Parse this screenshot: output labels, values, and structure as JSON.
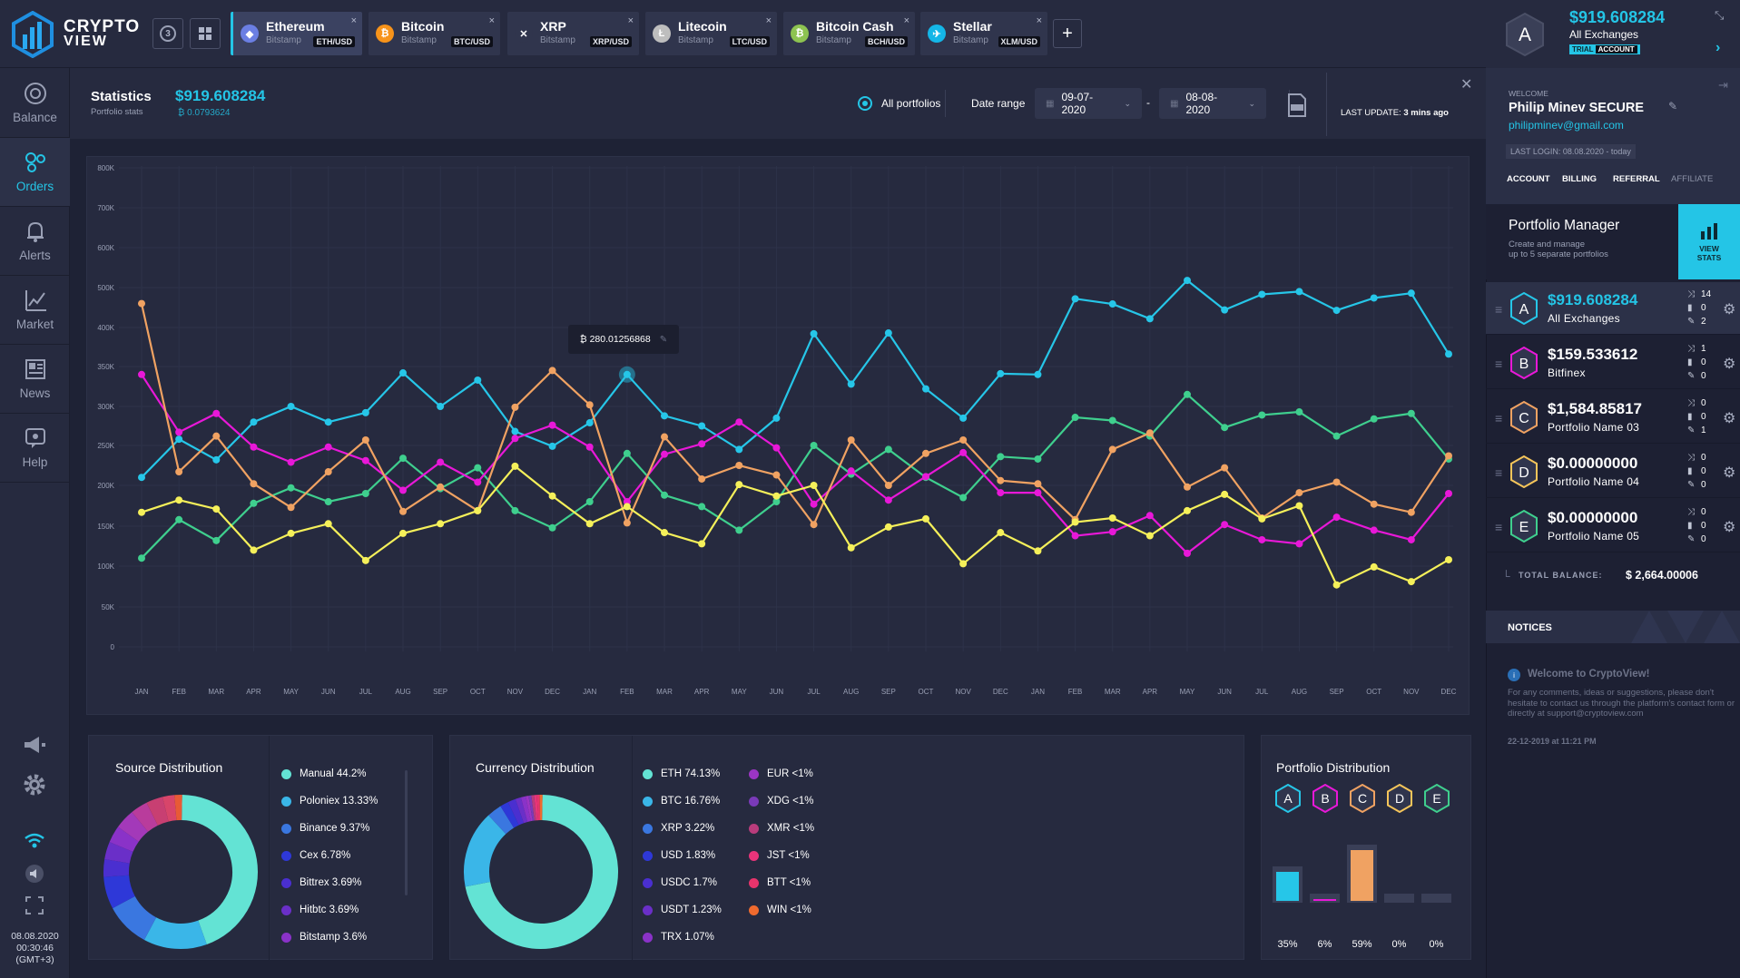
{
  "app": {
    "logo_line1": "CRYPTO",
    "logo_line2": "VIEW"
  },
  "toolbar": {
    "layout_count": "3",
    "add_tab": "+"
  },
  "tabs": [
    {
      "name": "Ethereum",
      "exchange": "Bitstamp",
      "pair": "ETH/USD",
      "color": "#6b7fe3",
      "glyph": "◆",
      "active": true
    },
    {
      "name": "Bitcoin",
      "exchange": "Bitstamp",
      "pair": "BTC/USD",
      "color": "#f7931a",
      "glyph": "₿"
    },
    {
      "name": "XRP",
      "exchange": "Bitstamp",
      "pair": "XRP/USD",
      "color": "#30354d",
      "glyph": "✕"
    },
    {
      "name": "Litecoin",
      "exchange": "Bitstamp",
      "pair": "LTC/USD",
      "color": "#bebebe",
      "glyph": "Ł"
    },
    {
      "name": "Bitcoin Cash",
      "exchange": "Bitstamp",
      "pair": "BCH/USD",
      "color": "#8dc351",
      "glyph": "₿"
    },
    {
      "name": "Stellar",
      "exchange": "Bitstamp",
      "pair": "XLM/USD",
      "color": "#14b6e7",
      "glyph": "✈"
    }
  ],
  "sidebar": {
    "items": [
      {
        "label": "Balance",
        "icon": "balance-icon"
      },
      {
        "label": "Orders",
        "icon": "orders-icon",
        "active": true
      },
      {
        "label": "Alerts",
        "icon": "bell-icon"
      },
      {
        "label": "Market",
        "icon": "market-chart-icon"
      },
      {
        "label": "News",
        "icon": "news-icon"
      },
      {
        "label": "Help",
        "icon": "help-icon"
      }
    ],
    "date": "08.08.2020",
    "time": "00:30:46",
    "timezone": "(GMT+3)"
  },
  "stats": {
    "title": "Statistics",
    "subtitle": "Portfolio stats",
    "total": "$919.608284",
    "btc_total": "₿ 0.0793624",
    "portfolio_filter": "All portfolios",
    "date_range_label": "Date range",
    "date_from": "09-07-2020",
    "date_to": "08-08-2020",
    "date_separator": "-",
    "last_update_label": "LAST UPDATE:",
    "last_update_value": "3 mins ago"
  },
  "chart_data": {
    "type": "line",
    "y_ticks": [
      "0",
      "50K",
      "100K",
      "150K",
      "200K",
      "250K",
      "300K",
      "350K",
      "400K",
      "500K",
      "600K",
      "700K",
      "800K"
    ],
    "categories": [
      "JAN",
      "FEB",
      "MAR",
      "APR",
      "MAY",
      "JUN",
      "JUL",
      "AUG",
      "SEP",
      "OCT",
      "NOV",
      "DEC",
      "JAN",
      "FEB",
      "MAR",
      "APR",
      "MAY",
      "JUN",
      "JUL",
      "AUG",
      "SEP",
      "OCT",
      "NOV",
      "DEC",
      "JAN",
      "FEB",
      "MAR",
      "APR",
      "MAY",
      "JUN",
      "JUL",
      "AUG",
      "SEP",
      "OCT",
      "NOV",
      "DEC"
    ],
    "series": [
      {
        "color": "#26c6e8",
        "values": [
          210,
          258,
          232,
          280,
          300,
          280,
          292,
          342,
          300,
          333,
          268,
          249,
          279,
          340,
          288,
          275,
          245,
          285,
          392,
          328,
          393,
          322,
          285,
          341,
          340,
          472,
          459,
          422,
          518,
          444,
          483,
          490,
          443,
          474,
          486,
          366
        ]
      },
      {
        "color": "#3fcf8e",
        "values": [
          110,
          158,
          132,
          178,
          197,
          180,
          190,
          234,
          196,
          222,
          169,
          148,
          180,
          240,
          188,
          174,
          145,
          180,
          250,
          214,
          245,
          210,
          185,
          236,
          233,
          286,
          282,
          262,
          315,
          273,
          289,
          293,
          262,
          284,
          291,
          233
        ]
      },
      {
        "color": "#e818d8",
        "values": [
          340,
          267,
          291,
          248,
          229,
          248,
          231,
          194,
          229,
          204,
          259,
          276,
          248,
          180,
          239,
          252,
          280,
          247,
          177,
          218,
          182,
          211,
          241,
          191,
          191,
          138,
          143,
          163,
          116,
          152,
          133,
          128,
          161,
          145,
          133,
          190
        ]
      },
      {
        "color": "#f0a262",
        "values": [
          460,
          217,
          262,
          202,
          173,
          217,
          257,
          168,
          198,
          169,
          299,
          345,
          302,
          154,
          261,
          208,
          225,
          213,
          152,
          257,
          200,
          240,
          257,
          206,
          202,
          158,
          245,
          266,
          198,
          222,
          160,
          191,
          204,
          177,
          167,
          237
        ]
      },
      {
        "color": "#f5f05a",
        "values": [
          167,
          182,
          171,
          120,
          141,
          153,
          107,
          141,
          153,
          169,
          224,
          187,
          153,
          174,
          142,
          128,
          201,
          187,
          200,
          123,
          149,
          159,
          103,
          142,
          119,
          155,
          160,
          138,
          169,
          189,
          159,
          175,
          77,
          99,
          81,
          108
        ]
      }
    ],
    "tooltip": "₿ 280.01256868"
  },
  "source_distribution": {
    "title": "Source Distribution",
    "items": [
      {
        "label": "Manual 44.2%",
        "value": 44.2,
        "color": "#63e3d4"
      },
      {
        "label": "Poloniex 13.33%",
        "value": 13.33,
        "color": "#3ab6e8"
      },
      {
        "label": "Binance 9.37%",
        "value": 9.37,
        "color": "#3a77e0"
      },
      {
        "label": "Cex 6.78%",
        "value": 6.78,
        "color": "#2e38d8"
      },
      {
        "label": "Bittrex 3.69%",
        "value": 3.69,
        "color": "#4a2fd0"
      },
      {
        "label": "Hitbtc 3.69%",
        "value": 3.69,
        "color": "#6a2fc8"
      },
      {
        "label": "Bitstamp 3.6%",
        "value": 3.6,
        "color": "#8a32c8"
      }
    ],
    "extra_segments": [
      {
        "value": 4.2,
        "color": "#a339b9"
      },
      {
        "value": 3.6,
        "color": "#b93c9c"
      },
      {
        "value": 3.5,
        "color": "#c83f72"
      },
      {
        "value": 2.5,
        "color": "#d8456a"
      },
      {
        "value": 1.6,
        "color": "#e85a36"
      }
    ]
  },
  "currency_distribution": {
    "title": "Currency Distribution",
    "items_left": [
      {
        "label": "ETH 74.13%",
        "value": 74.13,
        "color": "#63e3d4"
      },
      {
        "label": "BTC 16.76%",
        "value": 16.76,
        "color": "#3ab6e8"
      },
      {
        "label": "XRP 3.22%",
        "value": 3.22,
        "color": "#3a77e0"
      },
      {
        "label": "USD 1.83%",
        "value": 1.83,
        "color": "#2e38d8"
      },
      {
        "label": "USDC 1.7%",
        "value": 1.7,
        "color": "#4a2fd0"
      },
      {
        "label": "USDT 1.23%",
        "value": 1.23,
        "color": "#6a2fc8"
      },
      {
        "label": "TRX 1.07%",
        "value": 1.07,
        "color": "#8a32c8"
      }
    ],
    "items_right": [
      {
        "label": "EUR <1%",
        "color": "#9c35c4"
      },
      {
        "label": "XDG <1%",
        "color": "#7a3ab8"
      },
      {
        "label": "XMR <1%",
        "color": "#b93c7c"
      },
      {
        "label": "JST <1%",
        "color": "#e8347a"
      },
      {
        "label": "BTT <1%",
        "color": "#e8346c"
      },
      {
        "label": "WIN <1%",
        "color": "#ef6a2e"
      }
    ]
  },
  "portfolio_distribution": {
    "title": "Portfolio Distribution",
    "letters": [
      {
        "letter": "A",
        "color": "#26c6e8"
      },
      {
        "letter": "B",
        "color": "#e818d8"
      },
      {
        "letter": "C",
        "color": "#f0a262"
      },
      {
        "letter": "D",
        "color": "#f5c55a"
      },
      {
        "letter": "E",
        "color": "#3fcf8e"
      }
    ],
    "bars": [
      {
        "label": "35%",
        "value": 35,
        "color": "#26c6e8"
      },
      {
        "label": "6%",
        "value": 6,
        "color": "#e818d8"
      },
      {
        "label": "59%",
        "value": 59,
        "color": "#f0a262"
      },
      {
        "label": "0%",
        "value": 0,
        "color": "#f5c55a"
      },
      {
        "label": "0%",
        "value": 0,
        "color": "#3fcf8e"
      }
    ]
  },
  "account": {
    "avatar_letter": "A",
    "total": "$919.608284",
    "scope": "All Exchanges",
    "badge_trial": "TRIAL",
    "badge_account": "ACCOUNT",
    "welcome_label": "WELCOME",
    "user_name": "Philip Minev SECURE",
    "email": "philipminev@gmail.com",
    "last_login": "LAST LOGIN: 08.08.2020 - today",
    "tabs": [
      "ACCOUNT",
      "BILLING",
      "REFERRAL",
      "AFFILIATE"
    ]
  },
  "portfolio_manager": {
    "title": "Portfolio Manager",
    "desc_line1": "Create and manage",
    "desc_line2": "up to 5 separate portfolios",
    "view_stats_line1": "VIEW",
    "view_stats_line2": "STATS",
    "portfolios": [
      {
        "letter": "A",
        "value": "$919.608284",
        "name": "All Exchanges",
        "color": "#26c6e8",
        "c1": "14",
        "c2": "0",
        "c3": "2"
      },
      {
        "letter": "B",
        "value": "$159.533612",
        "name": "Bitfinex",
        "color": "#e818d8",
        "c1": "1",
        "c2": "0",
        "c3": "0"
      },
      {
        "letter": "C",
        "value": "$1,584.85817",
        "name": "Portfolio Name 03",
        "color": "#f0a262",
        "c1": "0",
        "c2": "0",
        "c3": "1"
      },
      {
        "letter": "D",
        "value": "$0.00000000",
        "name": "Portfolio Name 04",
        "color": "#f5c55a",
        "c1": "0",
        "c2": "0",
        "c3": "0"
      },
      {
        "letter": "E",
        "value": "$0.00000000",
        "name": "Portfolio Name 05",
        "color": "#3fcf8e",
        "c1": "0",
        "c2": "0",
        "c3": "0"
      }
    ],
    "total_label": "TOTAL BALANCE:",
    "total_value": "$ 2,664.00006"
  },
  "notices": {
    "title": "NOTICES",
    "headline": "Welcome to CryptoView!",
    "body": "For any comments, ideas or suggestions, please don't hesitate to contact us through the platform's contact form or directly at support@cryptoview.com",
    "date": "22-12-2019 at 11:21 PM"
  },
  "colors": {
    "accent": "#24c5e6",
    "background": "#1e2235",
    "panel": "#262a3f"
  }
}
